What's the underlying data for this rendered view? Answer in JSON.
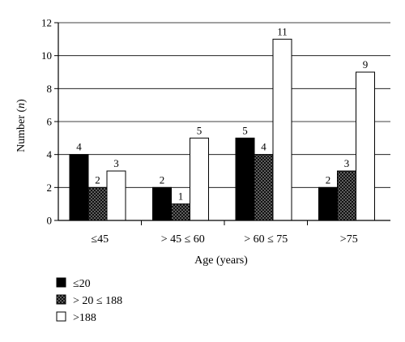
{
  "chart_data": {
    "type": "bar",
    "categories": [
      "≤45",
      "> 45 ≤ 60",
      "> 60 ≤ 75",
      ">75"
    ],
    "series": [
      {
        "name": "≤20",
        "values": [
          4,
          2,
          5,
          2
        ],
        "pattern": "solid",
        "color": "#000000"
      },
      {
        "name": "> 20 ≤ 188",
        "values": [
          2,
          1,
          4,
          3
        ],
        "pattern": "dotted",
        "color": "#1a1a1a"
      },
      {
        "name": ">188",
        "values": [
          3,
          5,
          11,
          9
        ],
        "pattern": "open",
        "color": "#ffffff"
      }
    ],
    "yticks": [
      "0",
      "2",
      "4",
      "6",
      "8",
      "10",
      "12"
    ],
    "ylim": [
      0,
      12
    ],
    "xlabel": "Age (years)",
    "ylabel_prefix": "Number (",
    "ylabel_var": "n",
    "ylabel_suffix": ")",
    "grid": true,
    "legend_position": "bottom-left"
  }
}
